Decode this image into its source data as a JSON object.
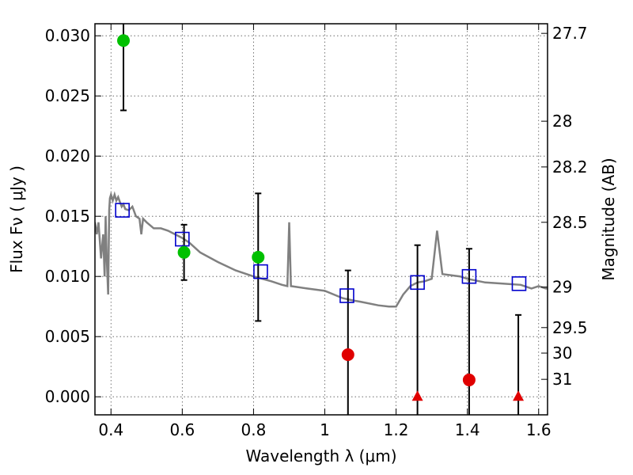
{
  "chart_data": {
    "type": "scatter",
    "xlabel": "Wavelength  λ (μm)",
    "ylabel": "Flux  Fν  ( μJy )",
    "y2label": "Magnitude (AB)",
    "xlim": [
      0.355,
      1.625
    ],
    "ylim": [
      -0.0015,
      0.031
    ],
    "grid": true,
    "x_ticks": [
      0.4,
      0.6,
      0.8,
      1.0,
      1.2,
      1.4,
      1.6
    ],
    "x_tick_labels": [
      "0.4",
      "0.6",
      "0.8",
      "1",
      "1.2",
      "1.4",
      "1.6"
    ],
    "y_ticks": [
      0.0,
      0.005,
      0.01,
      0.015,
      0.02,
      0.025,
      0.03
    ],
    "y_tick_labels": [
      "0.000",
      "0.005",
      "0.010",
      "0.015",
      "0.020",
      "0.025",
      "0.030"
    ],
    "mag_ticks": [
      {
        "label": "27.7",
        "flux": 0.0302
      },
      {
        "label": "28",
        "flux": 0.0229
      },
      {
        "label": "28.2",
        "flux": 0.0191
      },
      {
        "label": "28.5",
        "flux": 0.0145
      },
      {
        "label": "29",
        "flux": 0.00912
      },
      {
        "label": "29.5",
        "flux": 0.00575
      },
      {
        "label": "30",
        "flux": 0.00363
      },
      {
        "label": "31",
        "flux": 0.00145
      }
    ],
    "series": [
      {
        "kind": "sed-model-curve",
        "color": "#808080",
        "x": [
          0.355,
          0.36,
          0.365,
          0.372,
          0.378,
          0.382,
          0.385,
          0.388,
          0.392,
          0.395,
          0.397,
          0.4,
          0.405,
          0.41,
          0.415,
          0.42,
          0.425,
          0.43,
          0.435,
          0.44,
          0.45,
          0.46,
          0.47,
          0.48,
          0.485,
          0.49,
          0.5,
          0.52,
          0.54,
          0.56,
          0.58,
          0.6,
          0.62,
          0.65,
          0.7,
          0.75,
          0.8,
          0.85,
          0.88,
          0.895,
          0.9,
          0.905,
          0.95,
          1.0,
          1.05,
          1.08,
          1.1,
          1.15,
          1.18,
          1.2,
          1.21,
          1.22,
          1.24,
          1.26,
          1.28,
          1.3,
          1.315,
          1.33,
          1.38,
          1.4,
          1.45,
          1.5,
          1.55,
          1.58,
          1.6,
          1.62,
          1.625
        ],
        "y": [
          0.0145,
          0.0135,
          0.0145,
          0.0115,
          0.0135,
          0.01,
          0.015,
          0.0115,
          0.0085,
          0.0155,
          0.0165,
          0.0168,
          0.0163,
          0.0168,
          0.0163,
          0.0166,
          0.0162,
          0.0158,
          0.016,
          0.0156,
          0.0155,
          0.0158,
          0.015,
          0.0148,
          0.0135,
          0.0148,
          0.0145,
          0.014,
          0.014,
          0.0138,
          0.0135,
          0.0132,
          0.0128,
          0.012,
          0.0112,
          0.0105,
          0.01,
          0.0096,
          0.0093,
          0.0092,
          0.0145,
          0.0092,
          0.009,
          0.0088,
          0.0082,
          0.008,
          0.0079,
          0.0076,
          0.0075,
          0.0075,
          0.008,
          0.0085,
          0.0092,
          0.0095,
          0.0096,
          0.0098,
          0.0138,
          0.0102,
          0.01,
          0.0098,
          0.0095,
          0.0094,
          0.0093,
          0.009,
          0.0092,
          0.009,
          0.009
        ]
      },
      {
        "kind": "model-flux-squares",
        "color": "#0000cc",
        "x": [
          0.432,
          0.6,
          0.82,
          1.062,
          1.26,
          1.405,
          1.545
        ],
        "y": [
          0.0155,
          0.0131,
          0.0104,
          0.0084,
          0.0095,
          0.01,
          0.0094
        ]
      },
      {
        "kind": "detections",
        "color": "#00c000",
        "x": [
          0.435,
          0.605,
          0.813
        ],
        "y": [
          0.0296,
          0.012,
          0.0116
        ],
        "err": [
          0.0058,
          0.0023,
          0.0053
        ]
      },
      {
        "kind": "low-significance",
        "color": "#e00000",
        "x": [
          1.065,
          1.405
        ],
        "y": [
          0.0035,
          0.0014
        ],
        "err": [
          0.007,
          0.0109
        ]
      },
      {
        "kind": "upper-limits",
        "color": "#e00000",
        "x": [
          1.26,
          1.543
        ],
        "y": [
          0.0,
          0.0
        ],
        "err_hi": [
          0.0126,
          0.0068
        ]
      }
    ]
  }
}
